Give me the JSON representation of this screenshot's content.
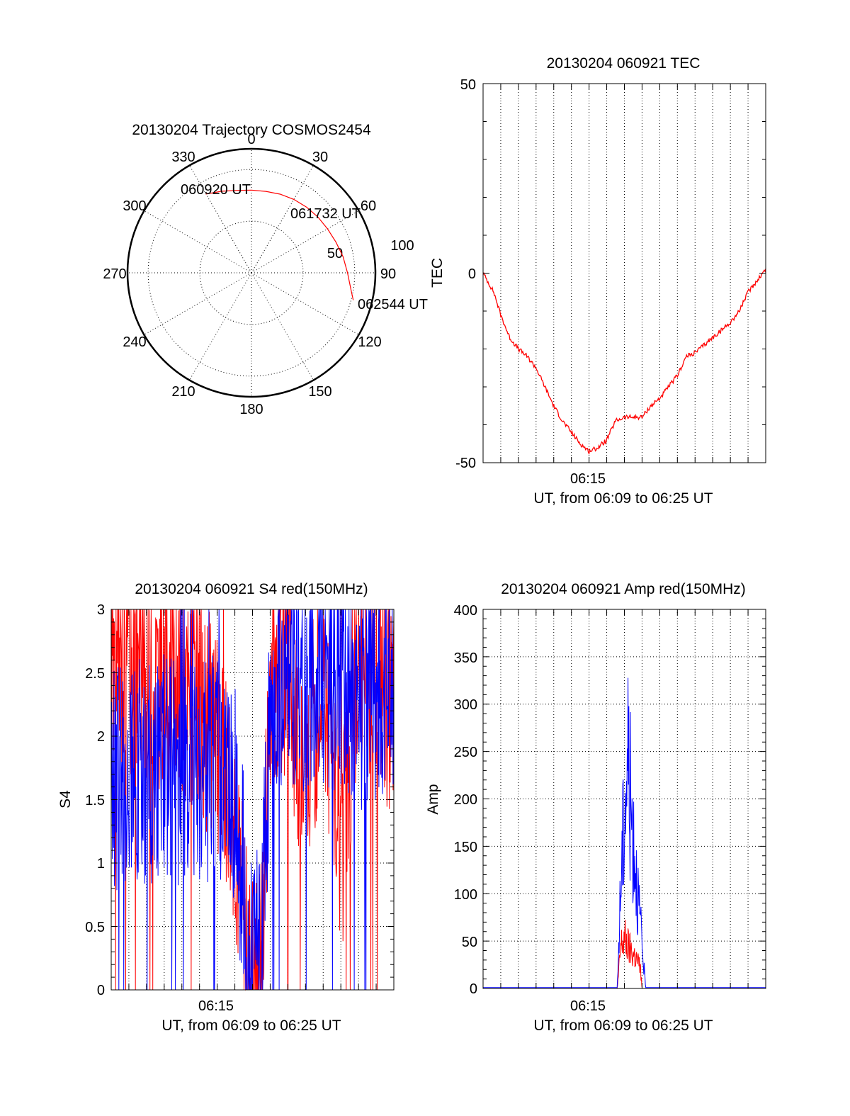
{
  "colors": {
    "red": "#ff0000",
    "blue": "#0000ff",
    "axis": "#000000"
  },
  "chart_data": [
    {
      "type": "polar",
      "title": "20130204 Trajectory COSMOS2454",
      "azimuth_labels": [
        "0",
        "30",
        "60",
        "90",
        "120",
        "150",
        "180",
        "210",
        "240",
        "270",
        "300",
        "330"
      ],
      "elevation_labels": [
        "50",
        "100"
      ],
      "annotations": [
        "060920 UT",
        "061732 UT",
        "062544 UT"
      ],
      "trajectory": {
        "color": "#ff0000",
        "points": [
          {
            "az": 330,
            "zenith": 88
          },
          {
            "az": 340,
            "zenith": 84
          },
          {
            "az": 350,
            "zenith": 81
          },
          {
            "az": 0,
            "zenith": 80
          },
          {
            "az": 10,
            "zenith": 80
          },
          {
            "az": 20,
            "zenith": 81
          },
          {
            "az": 30,
            "zenith": 82
          },
          {
            "az": 40,
            "zenith": 83
          },
          {
            "az": 50,
            "zenith": 84
          },
          {
            "az": 60,
            "zenith": 85
          },
          {
            "az": 70,
            "zenith": 87
          },
          {
            "az": 80,
            "zenith": 90
          },
          {
            "az": 90,
            "zenith": 93
          },
          {
            "az": 100,
            "zenith": 98
          },
          {
            "az": 105,
            "zenith": 102
          }
        ]
      }
    },
    {
      "type": "line",
      "title": "20130204 060921 TEC",
      "xlabel": "UT, from 06:09 to 06:25 UT",
      "ylabel": "TEC",
      "xtick_labels": [
        "06:15"
      ],
      "ytick_labels": [
        "-50",
        "0",
        "50"
      ],
      "ylim": [
        -50,
        50
      ],
      "xlim_minutes": [
        0,
        16
      ],
      "grid": true,
      "series": [
        {
          "color": "#ff0000",
          "x": [
            0.0,
            0.6,
            1.0,
            1.5,
            2.0,
            2.5,
            3.0,
            3.5,
            4.0,
            4.5,
            5.0,
            5.5,
            6.0,
            6.5,
            7.0,
            7.5,
            8.0,
            8.5,
            9.0,
            9.5,
            10.0,
            10.5,
            11.0,
            11.5,
            12.0,
            12.5,
            13.0,
            13.5,
            14.0,
            14.5,
            15.0,
            15.5,
            16.0
          ],
          "y": [
            0,
            -5,
            -11,
            -17,
            -20,
            -22,
            -25,
            -30,
            -35,
            -39,
            -42,
            -45,
            -47,
            -46,
            -44,
            -39,
            -38,
            -38,
            -38,
            -35,
            -33,
            -30,
            -27,
            -22,
            -21,
            -19,
            -17,
            -15,
            -13,
            -10,
            -5,
            -2,
            1
          ]
        }
      ]
    },
    {
      "type": "line",
      "title": "20130204 060921 S4 red(150MHz)",
      "xlabel": "UT, from 06:09 to 06:25 UT",
      "ylabel": "S4",
      "xtick_labels": [
        "06:15"
      ],
      "ytick_labels": [
        "0",
        "0.5",
        "1",
        "1.5",
        "2",
        "2.5",
        "3"
      ],
      "ylim": [
        0,
        3
      ],
      "xlim_minutes": [
        0,
        16
      ],
      "grid": true,
      "series": [
        {
          "color": "#ff0000",
          "x": [
            0,
            1,
            2,
            3,
            4,
            5,
            6,
            7,
            7.2,
            7.5,
            7.8,
            8,
            8.5,
            9,
            10,
            11,
            12,
            13,
            14,
            15,
            16
          ],
          "y": [
            2.5,
            2.6,
            2.4,
            2.5,
            2.3,
            2.2,
            2.0,
            1.4,
            0.9,
            0.5,
            0.1,
            0.12,
            0.15,
            2.5,
            2.6,
            1.6,
            2.6,
            1.0,
            2.7,
            2.5,
            2.2
          ]
        },
        {
          "color": "#0000ff",
          "x": [
            0,
            1,
            2,
            3,
            4,
            5,
            6,
            7,
            7.2,
            7.5,
            7.8,
            8,
            8.5,
            9,
            10,
            11,
            12,
            13,
            14,
            15,
            16
          ],
          "y": [
            1.6,
            1.8,
            1.7,
            1.8,
            1.7,
            1.7,
            1.8,
            1.5,
            1.2,
            0.8,
            0.15,
            0.2,
            0.3,
            2.2,
            2.5,
            2.4,
            2.5,
            2.4,
            2.3,
            2.4,
            2.5
          ]
        }
      ]
    },
    {
      "type": "line",
      "title": "20130204 060921 Amp red(150MHz)",
      "xlabel": "UT, from 06:09 to 06:25 UT",
      "ylabel": "Amp",
      "xtick_labels": [
        "06:15"
      ],
      "ytick_labels": [
        "0",
        "50",
        "100",
        "150",
        "200",
        "250",
        "300",
        "350",
        "400"
      ],
      "ylim": [
        0,
        400
      ],
      "xlim_minutes": [
        0,
        16
      ],
      "grid": true,
      "series": [
        {
          "color": "#ff0000",
          "x": [
            0,
            7.6,
            7.8,
            8.0,
            8.3,
            8.6,
            8.9,
            9.0,
            16
          ],
          "y": [
            0,
            0,
            60,
            70,
            55,
            45,
            30,
            0,
            0
          ]
        },
        {
          "color": "#0000ff",
          "x": [
            0,
            7.6,
            7.8,
            8.0,
            8.2,
            8.4,
            8.6,
            8.8,
            9.0,
            9.2,
            16
          ],
          "y": [
            1,
            1,
            150,
            250,
            330,
            240,
            190,
            120,
            60,
            1,
            1
          ]
        }
      ]
    }
  ]
}
